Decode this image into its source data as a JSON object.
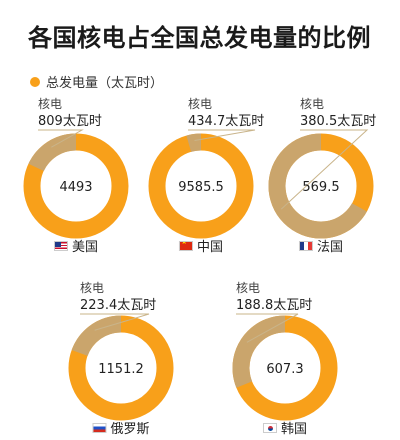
{
  "title": "各国核电占全国总发电量的比例",
  "legend": {
    "label": "总发电量（太瓦时）"
  },
  "colors": {
    "accent": "#f8a01a",
    "nuclear": "#caa56c",
    "line": "#c9b48a"
  },
  "chart_data": {
    "type": "donut",
    "series_label": "总发电量（太瓦时）",
    "items": [
      {
        "country": "美国",
        "flag": "us",
        "label": "核电",
        "nuclear": "809太瓦时",
        "nuclear_value": 809,
        "total": "4493",
        "total_value": 4493,
        "share": 0.18
      },
      {
        "country": "中国",
        "flag": "cn",
        "label": "核电",
        "nuclear": "434.7太瓦时",
        "nuclear_value": 434.7,
        "total": "9585.5",
        "total_value": 9585.5,
        "share": 0.045
      },
      {
        "country": "法国",
        "flag": "fr",
        "label": "核电",
        "nuclear": "380.5太瓦时",
        "nuclear_value": 380.5,
        "total": "569.5",
        "total_value": 569.5,
        "share": 0.668
      },
      {
        "country": "俄罗斯",
        "flag": "ru",
        "label": "核电",
        "nuclear": "223.4太瓦时",
        "nuclear_value": 223.4,
        "total": "1151.2",
        "total_value": 1151.2,
        "share": 0.194
      },
      {
        "country": "韩国",
        "flag": "kr",
        "label": "核电",
        "nuclear": "188.8太瓦时",
        "nuclear_value": 188.8,
        "total": "607.3",
        "total_value": 607.3,
        "share": 0.311
      }
    ]
  }
}
